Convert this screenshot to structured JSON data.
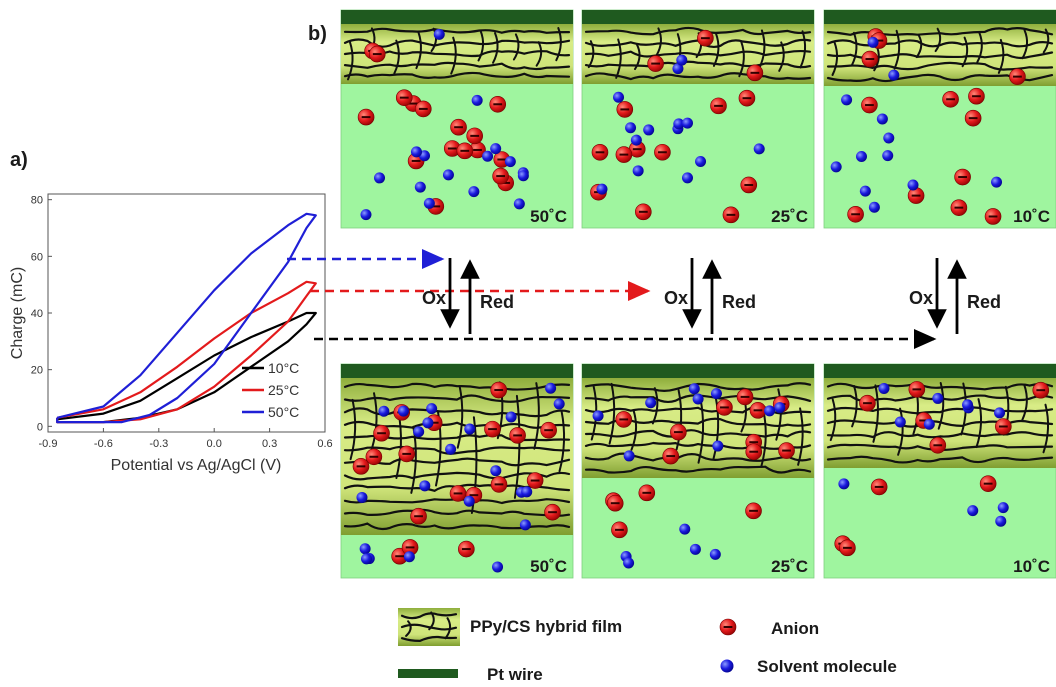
{
  "panel_a": {
    "label": "a)",
    "chart_data": {
      "type": "line",
      "xlabel": "Potential vs Ag/AgCl (V)",
      "ylabel": "Charge (mC)",
      "xlim": [
        -0.9,
        0.6
      ],
      "ylim": [
        -2,
        82
      ],
      "x_ticks": [
        "-0.9",
        "-0.6",
        "-0.3",
        "0.0",
        "0.3",
        "0.6"
      ],
      "y_ticks": [
        "0",
        "20",
        "40",
        "60",
        "80"
      ],
      "legend_position": "bottom-right",
      "series": [
        {
          "name": "10°C",
          "color": "#000000",
          "upper": [
            [
              -0.85,
              2.5
            ],
            [
              -0.6,
              4.5
            ],
            [
              -0.4,
              9
            ],
            [
              -0.2,
              17
            ],
            [
              0.0,
              25
            ],
            [
              0.2,
              31.5
            ],
            [
              0.4,
              37
            ],
            [
              0.5,
              40
            ]
          ],
          "lower": [
            [
              0.55,
              40
            ],
            [
              0.5,
              36
            ],
            [
              0.4,
              30
            ],
            [
              0.2,
              21
            ],
            [
              0.0,
              12
            ],
            [
              -0.2,
              6
            ],
            [
              -0.4,
              3
            ],
            [
              -0.6,
              1.5
            ],
            [
              -0.85,
              1.5
            ]
          ]
        },
        {
          "name": "25°C",
          "color": "#e31a1c",
          "upper": [
            [
              -0.85,
              3
            ],
            [
              -0.6,
              6
            ],
            [
              -0.4,
              12
            ],
            [
              -0.2,
              21
            ],
            [
              0.0,
              31
            ],
            [
              0.2,
              40
            ],
            [
              0.4,
              47
            ],
            [
              0.5,
              51
            ]
          ],
          "lower": [
            [
              0.55,
              50.5
            ],
            [
              0.5,
              46
            ],
            [
              0.4,
              37
            ],
            [
              0.2,
              25
            ],
            [
              0.0,
              14
            ],
            [
              -0.2,
              6
            ],
            [
              -0.4,
              2.5
            ],
            [
              -0.6,
              1.5
            ],
            [
              -0.85,
              1.5
            ]
          ]
        },
        {
          "name": "50°C",
          "color": "#1f1fd6",
          "upper": [
            [
              -0.85,
              3
            ],
            [
              -0.6,
              7
            ],
            [
              -0.4,
              18
            ],
            [
              -0.2,
              33
            ],
            [
              0.0,
              48
            ],
            [
              0.2,
              61
            ],
            [
              0.4,
              71
            ],
            [
              0.5,
              75
            ]
          ],
          "lower": [
            [
              0.55,
              74.5
            ],
            [
              0.5,
              70
            ],
            [
              0.4,
              58
            ],
            [
              0.2,
              40
            ],
            [
              0.0,
              22
            ],
            [
              -0.2,
              10
            ],
            [
              -0.35,
              4
            ],
            [
              -0.5,
              1.5
            ],
            [
              -0.85,
              1.5
            ]
          ]
        }
      ]
    }
  },
  "panel_b": {
    "label": "b)",
    "temps_top": [
      "50˚C",
      "25˚C",
      "10˚C"
    ],
    "temps_bottom": [
      "50˚C",
      "25˚C",
      "10˚C"
    ],
    "ox_label": "Ox",
    "red_label": "Red"
  },
  "legend": {
    "film": "PPy/CS hybrid film",
    "wire": "Pt wire",
    "anion": "Anion",
    "solvent": "Solvent molecule"
  },
  "colors": {
    "solution": "#9ff59f",
    "film_light": "#d4e87e",
    "film_dark": "#8aa838",
    "wire": "#1f5a1f",
    "anion": "#e41a1c",
    "solvent": "#1a1adf",
    "arrow_blue": "#1f1fd6",
    "arrow_red": "#e31a1c",
    "arrow_black": "#000000"
  }
}
